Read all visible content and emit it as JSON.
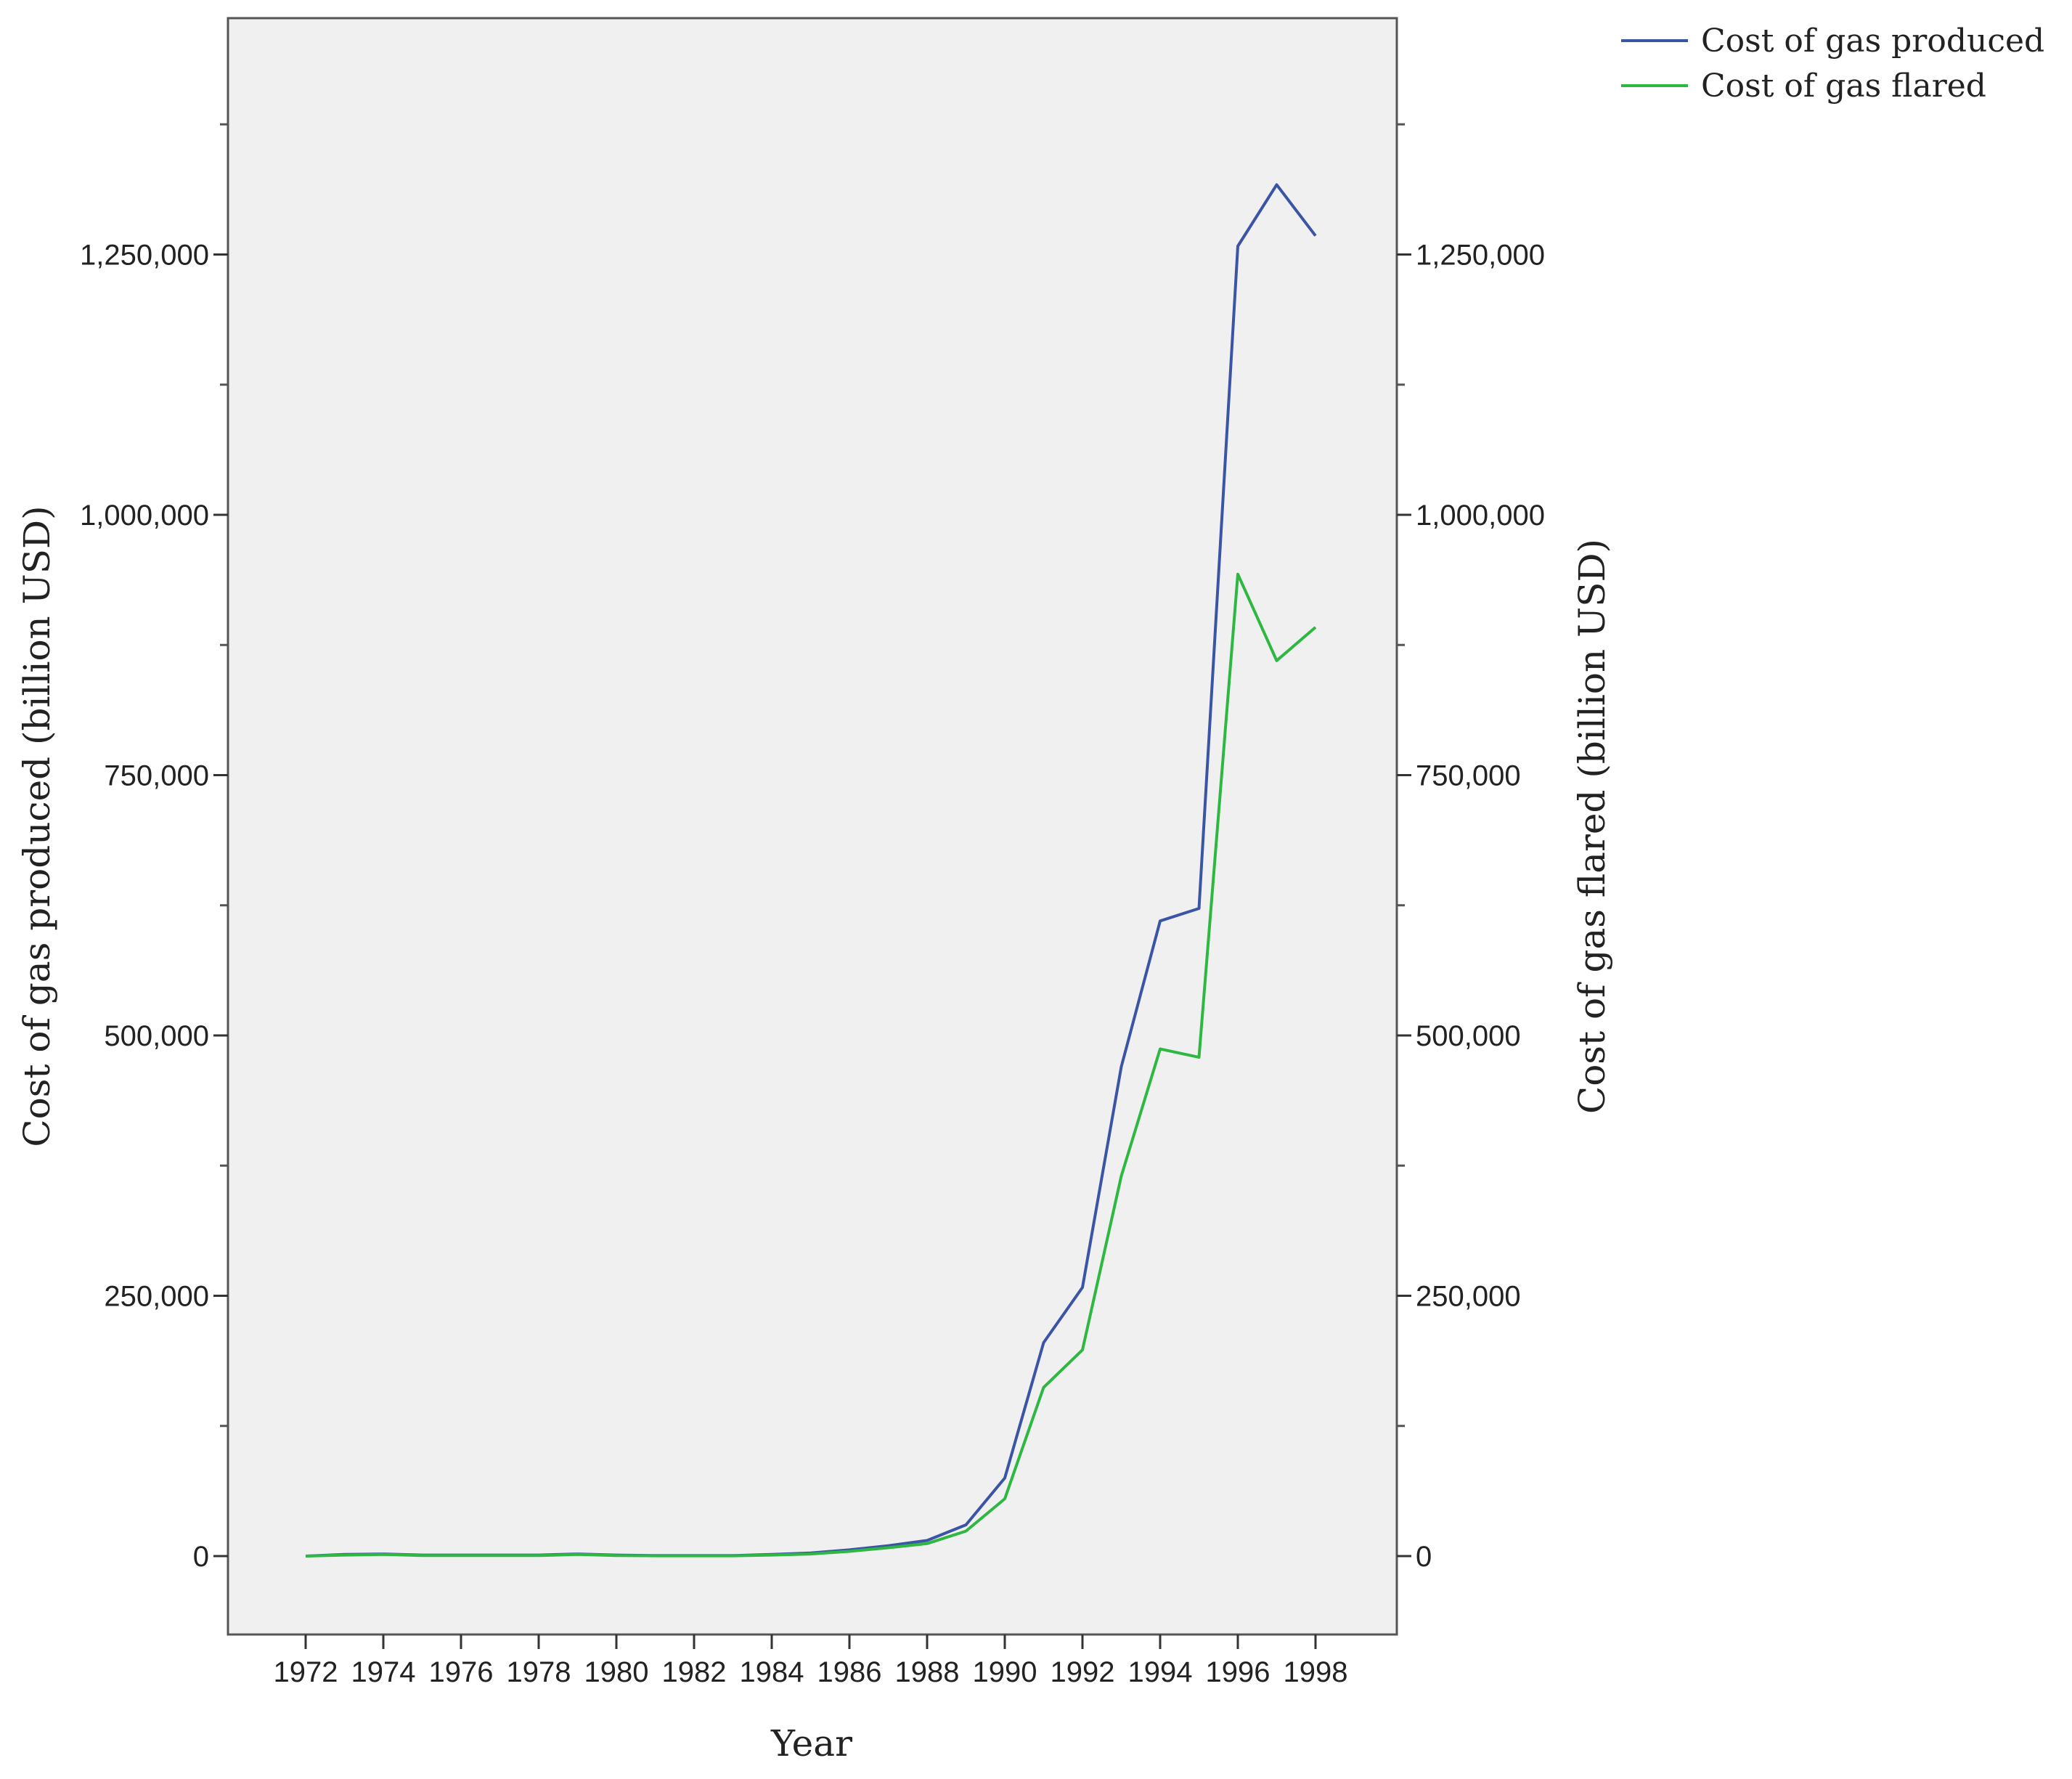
{
  "chart_data": {
    "type": "line",
    "title": "",
    "xlabel": "Year",
    "ylabel_left": "Cost of gas produced (billion USD)",
    "ylabel_right": "Cost of gas flared (billion USD)",
    "x": [
      1972,
      1973,
      1974,
      1975,
      1976,
      1977,
      1978,
      1979,
      1980,
      1981,
      1982,
      1983,
      1984,
      1985,
      1986,
      1987,
      1988,
      1989,
      1990,
      1991,
      1992,
      1993,
      1994,
      1995,
      1996,
      1997,
      1998
    ],
    "x_ticks": [
      "1972",
      "1974",
      "1976",
      "1978",
      "1980",
      "1982",
      "1984",
      "1986",
      "1988",
      "1990",
      "1992",
      "1994",
      "1996",
      "1998"
    ],
    "y_ticks": [
      "0",
      "250,000",
      "500,000",
      "750,000",
      "1,000,000",
      "1,250,000"
    ],
    "ylim": [
      -75000,
      1480000
    ],
    "grid": false,
    "legend_position": "top-right",
    "series": [
      {
        "name": "Cost of gas produced",
        "axis": "left",
        "color": "#3b55a6",
        "values": [
          0,
          1500,
          2000,
          1000,
          1000,
          1000,
          1000,
          2000,
          1000,
          500,
          500,
          500,
          1500,
          3000,
          6000,
          10000,
          15000,
          30000,
          75000,
          205000,
          258000,
          470000,
          610000,
          622000,
          1258000,
          1317000,
          1268000
        ]
      },
      {
        "name": "Cost of gas flared",
        "axis": "right",
        "color": "#2eb842",
        "values": [
          0,
          1000,
          1500,
          500,
          500,
          500,
          500,
          1500,
          500,
          300,
          300,
          300,
          1000,
          2000,
          4500,
          8000,
          12000,
          24000,
          55000,
          162000,
          198000,
          365000,
          487000,
          479000,
          943000,
          860000,
          892000
        ]
      }
    ]
  }
}
